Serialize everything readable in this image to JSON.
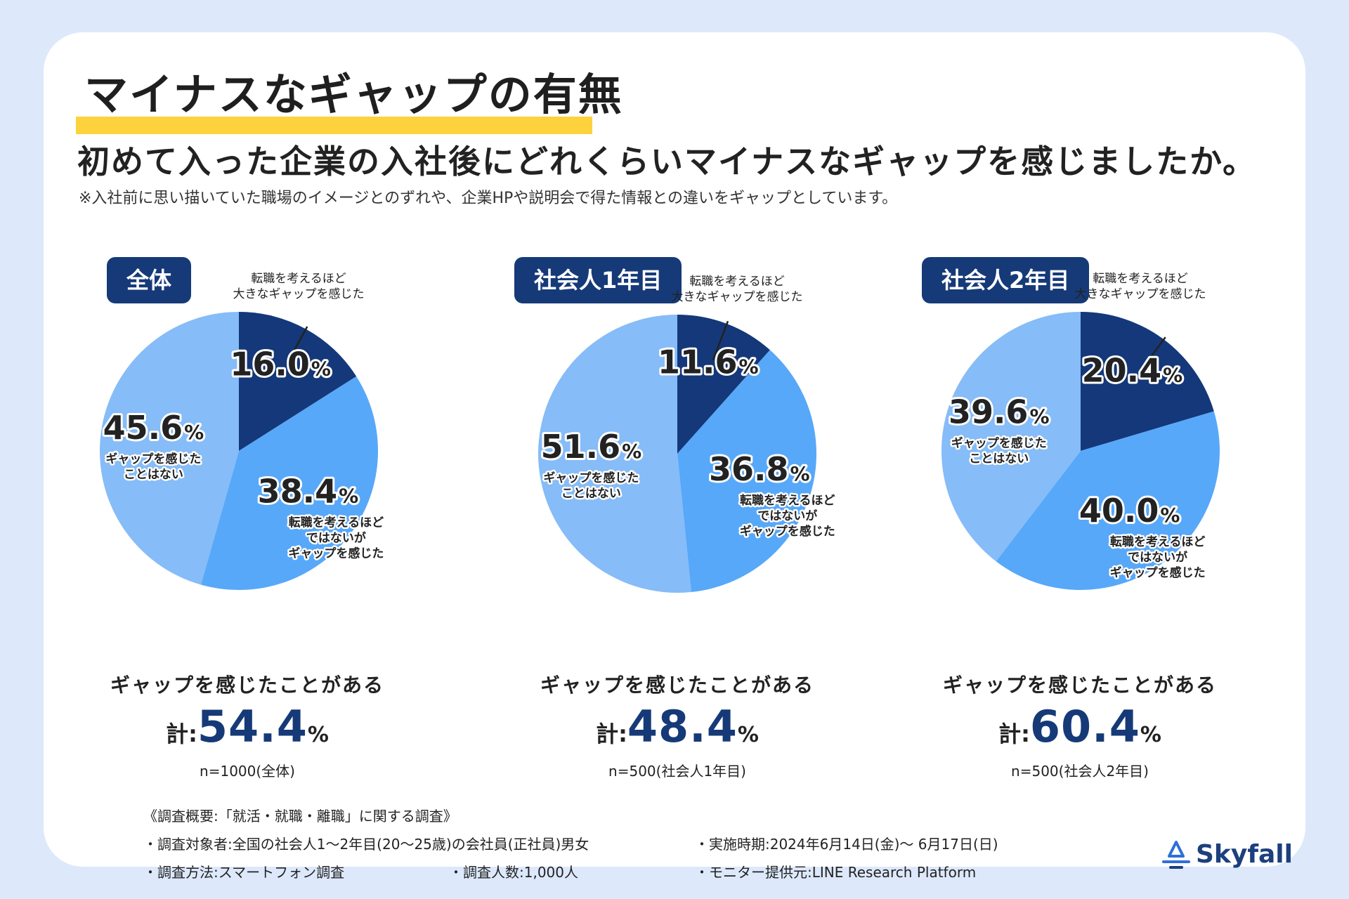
{
  "title": "マイナスなギャップの有無",
  "question": "初めて入った企業の入社後にどれくらいマイナスなギャップを感じましたか。",
  "note": "※入社前に思い描いていた職場のイメージとのずれや、企業HPや説明会で得た情報との違いをギャップとしています。",
  "colors": {
    "big_gap": "#14387a",
    "some_gap": "#57a8f9",
    "no_gap": "#86bcf7",
    "tag_bg": "#163a78",
    "title_highlight": "#fdd23c",
    "accent": "#163a78"
  },
  "labels": {
    "big_gap": [
      "転職を考えるほど",
      "大きなギャップを感じた"
    ],
    "some_gap": [
      "転職を考えるほど",
      "ではないが",
      "ギャップを感じた"
    ],
    "no_gap": [
      "ギャップを感じた",
      "ことはない"
    ]
  },
  "summary_label": "ギャップを感じたことがある",
  "total_prefix": "計:",
  "percent_unit": "%",
  "chart_data": [
    {
      "type": "pie",
      "title": "全体",
      "categories": [
        "転職を考えるほど大きなギャップを感じた",
        "転職を考えるほどではないがギャップを感じた",
        "ギャップを感じたことはない"
      ],
      "values": [
        16.0,
        38.4,
        45.6
      ],
      "value_labels": [
        "16.0",
        "38.4",
        "45.6"
      ],
      "total_label": "54.4",
      "n_label": "n=1000(全体)"
    },
    {
      "type": "pie",
      "title": "社会人1年目",
      "categories": [
        "転職を考えるほど大きなギャップを感じた",
        "転職を考えるほどではないがギャップを感じた",
        "ギャップを感じたことはない"
      ],
      "values": [
        11.6,
        36.8,
        51.6
      ],
      "value_labels": [
        "11.6",
        "36.8",
        "51.6"
      ],
      "total_label": "48.4",
      "n_label": "n=500(社会人1年目)"
    },
    {
      "type": "pie",
      "title": "社会人2年目",
      "categories": [
        "転職を考えるほど大きなギャップを感じた",
        "転職を考えるほどではないがギャップを感じた",
        "ギャップを感じたことはない"
      ],
      "values": [
        20.4,
        40.0,
        39.6
      ],
      "value_labels": [
        "20.4",
        "40.0",
        "39.6"
      ],
      "total_label": "60.4",
      "n_label": "n=500(社会人2年目)"
    }
  ],
  "footer": {
    "heading": "《調査概要:「就活・就職・離職」に関する調査》",
    "target": "・調査対象者:全国の社会人1～2年目(20～25歳)の会社員(正社員)男女",
    "period": "・実施時期:2024年6月14日(金)～ 6月17日(日)",
    "method": "・調査方法:スマートフォン調査",
    "count": "・調査人数:1,000人",
    "provider": "・モニター提供元:LINE Research Platform"
  },
  "logo": {
    "text": "Skyfall",
    "icon": "skyfall-logo-icon"
  }
}
